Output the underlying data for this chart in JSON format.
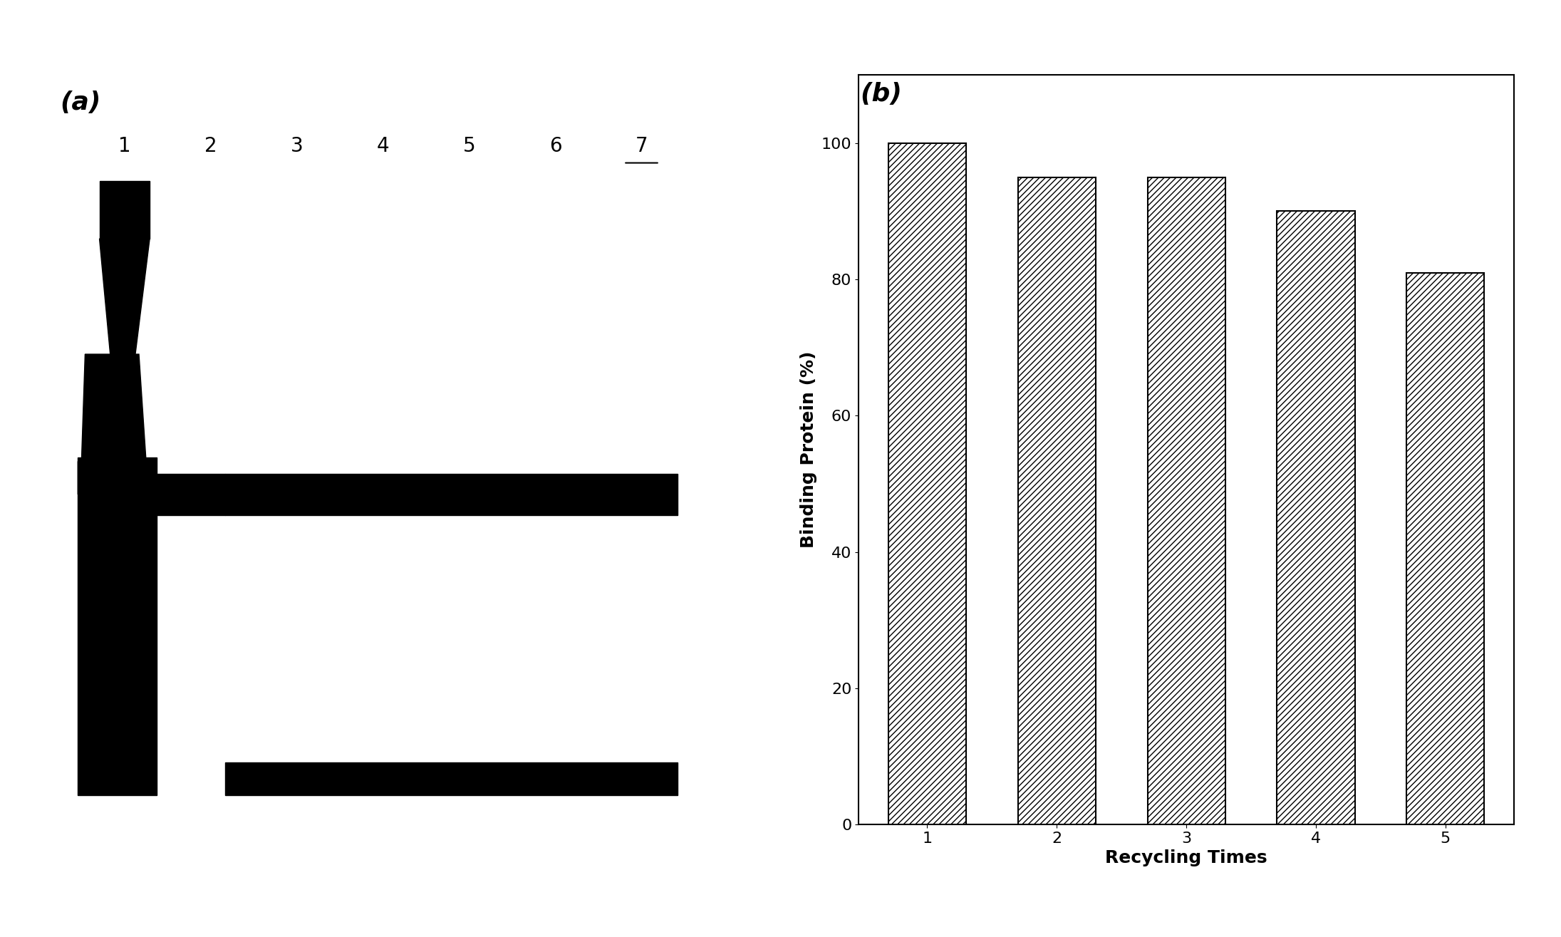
{
  "panel_a_label": "(a)",
  "panel_b_label": "(b)",
  "lane_labels": [
    "1",
    "2",
    "3",
    "4",
    "5",
    "6",
    "7"
  ],
  "bar_values": [
    100,
    95,
    95,
    90,
    81
  ],
  "bar_categories": [
    "1",
    "2",
    "3",
    "4",
    "5"
  ],
  "xlabel": "Recycling Times",
  "ylabel": "Binding Protein (%)",
  "ylim": [
    0,
    110
  ],
  "yticks": [
    0,
    20,
    40,
    60,
    80,
    100
  ],
  "bar_color": "white",
  "bar_edgecolor": "black",
  "hatch": "////",
  "background_color": "#ffffff",
  "figure_width": 21.91,
  "figure_height": 13.15,
  "label_fontsize": 18,
  "tick_fontsize": 16,
  "lane_label_fontsize": 20,
  "panel_label_fontsize": 26
}
